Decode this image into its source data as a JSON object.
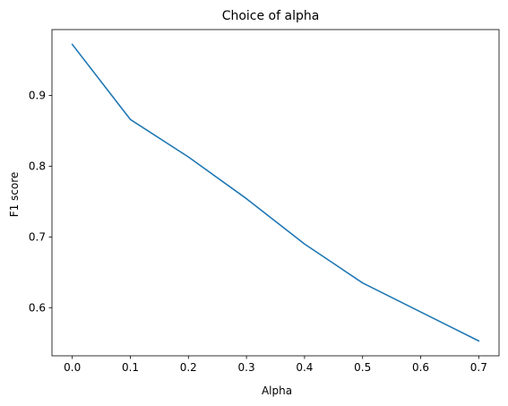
{
  "chart_data": {
    "type": "line",
    "title": "Choice of alpha",
    "xlabel": "Alpha",
    "ylabel": "F1 score",
    "x": [
      0.0,
      0.1,
      0.2,
      0.3,
      0.4,
      0.5,
      0.6,
      0.7
    ],
    "series": [
      {
        "values": [
          0.972,
          0.866,
          0.813,
          0.754,
          0.69,
          0.635,
          0.594,
          0.553
        ],
        "color": "#1f77b4"
      }
    ],
    "xlim": [
      -0.035,
      0.735
    ],
    "ylim": [
      0.532,
      0.993
    ],
    "xticks": [
      0.0,
      0.1,
      0.2,
      0.3,
      0.4,
      0.5,
      0.6,
      0.7
    ],
    "xtick_labels": [
      "0.0",
      "0.1",
      "0.2",
      "0.3",
      "0.4",
      "0.5",
      "0.6",
      "0.7"
    ],
    "yticks": [
      0.6,
      0.7,
      0.8,
      0.9
    ],
    "ytick_labels": [
      "0.6",
      "0.7",
      "0.8",
      "0.9"
    ],
    "grid": false,
    "legend": false
  }
}
